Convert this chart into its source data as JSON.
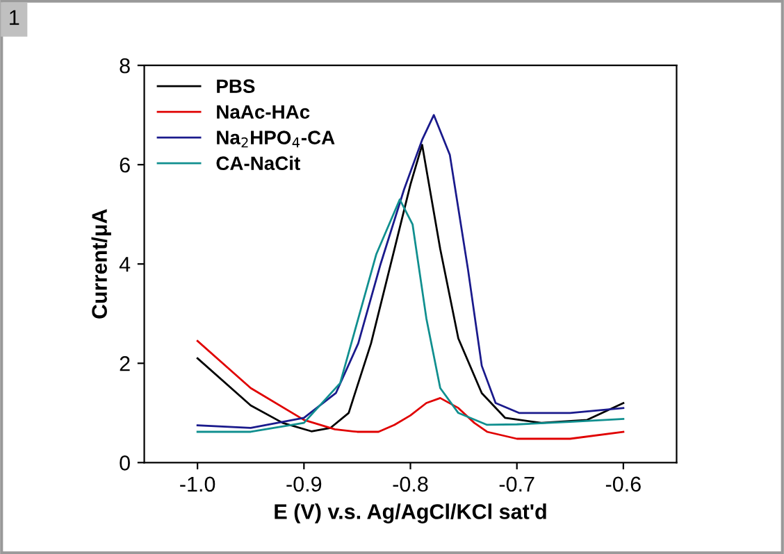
{
  "chart_data": {
    "type": "line",
    "xlabel": "E (V) v.s. Ag/AgCl/KCl sat'd",
    "ylabel": "Current/μA",
    "annotations": [
      "1"
    ],
    "xlim": [
      -1.05,
      -0.55
    ],
    "ylim": [
      0,
      8
    ],
    "xticks": [
      {
        "value": -1.0,
        "label": "-1.0"
      },
      {
        "value": -0.9,
        "label": "-0.9"
      },
      {
        "value": -0.8,
        "label": "-0.8"
      },
      {
        "value": -0.7,
        "label": "-0.7"
      },
      {
        "value": -0.6,
        "label": "-0.6"
      }
    ],
    "yticks": [
      0,
      2,
      4,
      6,
      8
    ],
    "grid": false,
    "legend": "top left",
    "marker": "none",
    "line_style": "solid",
    "series": [
      {
        "name": "PBS",
        "color": "#000000",
        "x": [
          -1.0,
          -0.95,
          -0.92,
          -0.893,
          -0.875,
          -0.858,
          -0.837,
          -0.815,
          -0.8,
          -0.789,
          -0.772,
          -0.755,
          -0.733,
          -0.711,
          -0.677,
          -0.634,
          -0.6
        ],
        "values": [
          2.1,
          1.15,
          0.8,
          0.63,
          0.7,
          1.0,
          2.4,
          4.3,
          5.6,
          6.4,
          4.3,
          2.5,
          1.4,
          0.9,
          0.8,
          0.86,
          1.2
        ]
      },
      {
        "name": "NaAc-HAc",
        "color": "#e00000",
        "x": [
          -1.0,
          -0.95,
          -0.9,
          -0.871,
          -0.85,
          -0.83,
          -0.815,
          -0.8,
          -0.785,
          -0.772,
          -0.755,
          -0.74,
          -0.728,
          -0.7,
          -0.65,
          -0.6
        ],
        "values": [
          2.45,
          1.5,
          0.86,
          0.67,
          0.62,
          0.62,
          0.76,
          0.95,
          1.2,
          1.3,
          1.1,
          0.8,
          0.62,
          0.48,
          0.48,
          0.62
        ]
      },
      {
        "name": "Na$_{2}$HPO$_{4}$-CA",
        "color": "#1a1a8c",
        "x": [
          -1.0,
          -0.95,
          -0.9,
          -0.87,
          -0.849,
          -0.828,
          -0.806,
          -0.789,
          -0.778,
          -0.763,
          -0.746,
          -0.733,
          -0.72,
          -0.698,
          -0.65,
          -0.6
        ],
        "values": [
          0.75,
          0.7,
          0.9,
          1.4,
          2.4,
          4.0,
          5.5,
          6.5,
          7.0,
          6.2,
          3.9,
          1.95,
          1.2,
          1.0,
          1.0,
          1.1
        ]
      },
      {
        "name": "CA-NaCit",
        "color": "#108f8f",
        "x": [
          -1.0,
          -0.95,
          -0.9,
          -0.866,
          -0.849,
          -0.832,
          -0.81,
          -0.798,
          -0.785,
          -0.772,
          -0.755,
          -0.728,
          -0.7,
          -0.65,
          -0.6
        ],
        "values": [
          0.62,
          0.62,
          0.8,
          1.6,
          2.9,
          4.2,
          5.3,
          4.8,
          2.9,
          1.5,
          1.0,
          0.76,
          0.77,
          0.82,
          0.88
        ]
      }
    ]
  }
}
